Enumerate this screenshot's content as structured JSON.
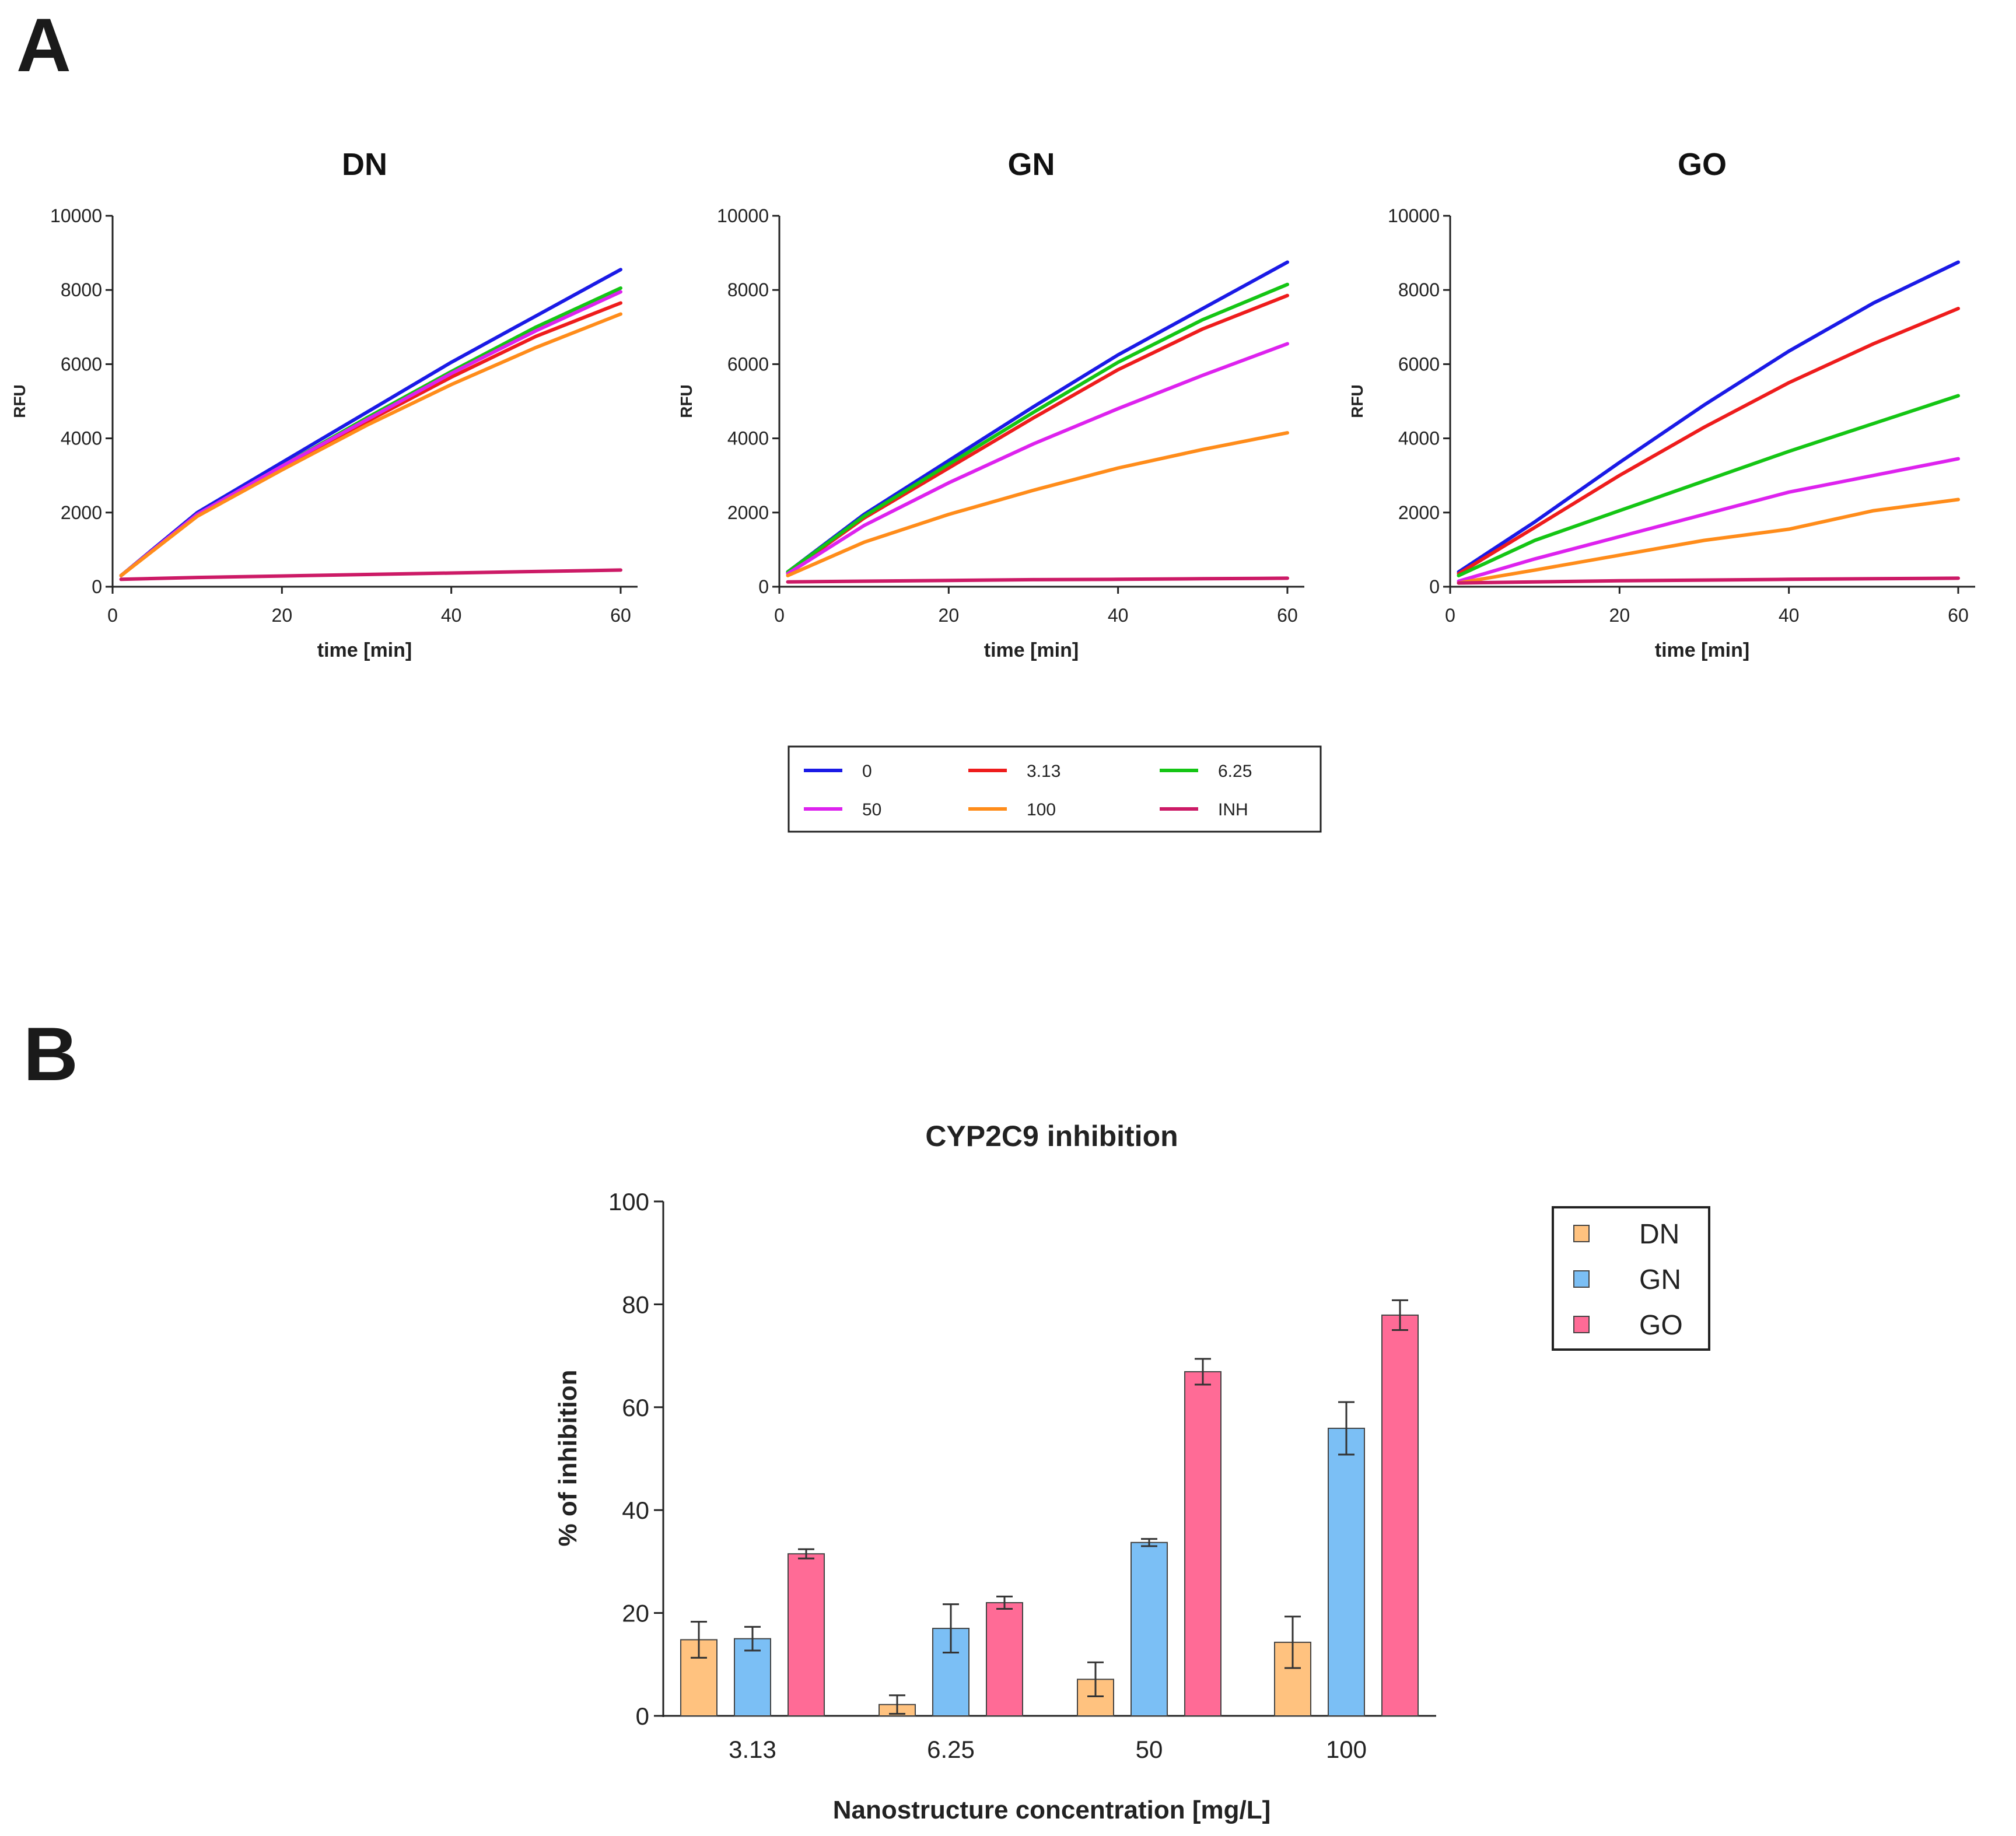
{
  "panels": {
    "a": {
      "letter": "A"
    },
    "b": {
      "letter": "B"
    }
  },
  "legend_a": {
    "entries": [
      {
        "label": "0",
        "color": "#1a1ae6"
      },
      {
        "label": "3.13",
        "color": "#ee1c1c"
      },
      {
        "label": "6.25",
        "color": "#14c514"
      },
      {
        "label": "50",
        "color": "#dd22ee"
      },
      {
        "label": "100",
        "color": "#ff8c1a"
      },
      {
        "label": "INH",
        "color": "#cc1a66"
      }
    ]
  },
  "chart_data": [
    {
      "type": "line",
      "title": "DN",
      "xlabel": "time [min]",
      "ylabel": "RFU",
      "xlim": [
        0,
        62
      ],
      "ylim": [
        0,
        10000
      ],
      "xticks": [
        "0",
        "20",
        "40",
        "60"
      ],
      "yticks": [
        "0",
        "2000",
        "4000",
        "6000",
        "8000",
        "10000"
      ],
      "x": [
        1,
        10,
        20,
        30,
        40,
        50,
        60
      ],
      "series": [
        {
          "name": "0",
          "values": [
            300,
            2000,
            3350,
            4700,
            6050,
            7300,
            8550
          ]
        },
        {
          "name": "3.13",
          "values": [
            300,
            1950,
            3200,
            4450,
            5650,
            6750,
            7650
          ]
        },
        {
          "name": "6.25",
          "values": [
            300,
            1950,
            3250,
            4550,
            5800,
            7000,
            8050
          ]
        },
        {
          "name": "50",
          "values": [
            300,
            1950,
            3250,
            4500,
            5750,
            6900,
            7950
          ]
        },
        {
          "name": "100",
          "values": [
            300,
            1900,
            3150,
            4350,
            5450,
            6450,
            7350
          ]
        },
        {
          "name": "INH",
          "values": [
            200,
            250,
            290,
            330,
            370,
            410,
            450
          ]
        }
      ]
    },
    {
      "type": "line",
      "title": "GN",
      "xlabel": "time [min]",
      "ylabel": "RFU",
      "xlim": [
        0,
        62
      ],
      "ylim": [
        0,
        10000
      ],
      "xticks": [
        "0",
        "20",
        "40",
        "60"
      ],
      "yticks": [
        "0",
        "2000",
        "4000",
        "6000",
        "8000",
        "10000"
      ],
      "x": [
        1,
        10,
        20,
        30,
        40,
        50,
        60
      ],
      "series": [
        {
          "name": "0",
          "values": [
            400,
            1950,
            3400,
            4850,
            6250,
            7500,
            8750
          ]
        },
        {
          "name": "3.13",
          "values": [
            380,
            1850,
            3200,
            4550,
            5850,
            6950,
            7850
          ]
        },
        {
          "name": "6.25",
          "values": [
            400,
            1900,
            3300,
            4700,
            6050,
            7200,
            8150
          ]
        },
        {
          "name": "50",
          "values": [
            350,
            1650,
            2800,
            3850,
            4800,
            5700,
            6550
          ]
        },
        {
          "name": "100",
          "values": [
            300,
            1200,
            1950,
            2600,
            3200,
            3700,
            4150
          ]
        },
        {
          "name": "INH",
          "values": [
            130,
            150,
            170,
            190,
            200,
            215,
            230
          ]
        }
      ]
    },
    {
      "type": "line",
      "title": "GO",
      "xlabel": "time [min]",
      "ylabel": "RFU",
      "xlim": [
        0,
        62
      ],
      "ylim": [
        0,
        10000
      ],
      "xticks": [
        "0",
        "20",
        "40",
        "60"
      ],
      "yticks": [
        "0",
        "2000",
        "4000",
        "6000",
        "8000",
        "10000"
      ],
      "x": [
        1,
        10,
        20,
        30,
        40,
        50,
        60
      ],
      "series": [
        {
          "name": "0",
          "values": [
            400,
            1750,
            3350,
            4900,
            6350,
            7650,
            8750
          ]
        },
        {
          "name": "3.13",
          "values": [
            350,
            1600,
            3000,
            4300,
            5500,
            6550,
            7500
          ]
        },
        {
          "name": "6.25",
          "values": [
            300,
            1250,
            2050,
            2850,
            3650,
            4400,
            5150
          ]
        },
        {
          "name": "50",
          "values": [
            150,
            750,
            1350,
            1950,
            2550,
            3000,
            3450
          ]
        },
        {
          "name": "100",
          "values": [
            100,
            450,
            850,
            1250,
            1550,
            2050,
            2350
          ]
        },
        {
          "name": "INH",
          "values": [
            100,
            130,
            160,
            180,
            200,
            215,
            230
          ]
        }
      ]
    },
    {
      "type": "bar",
      "title": "CYP2C9 inhibition",
      "xlabel": "Nanostructure concentration [mg/L]",
      "ylabel": "% of inhibition",
      "ylim": [
        0,
        100
      ],
      "yticks": [
        "0",
        "20",
        "40",
        "60",
        "80",
        "100"
      ],
      "categories": [
        "3.13",
        "6.25",
        "50",
        "100"
      ],
      "legend_position": "top-right",
      "series": [
        {
          "name": "DN",
          "color": "#ffc27f",
          "values": [
            14.8,
            2.2,
            7.1,
            14.3
          ],
          "errors": [
            3.5,
            1.8,
            3.3,
            5.0
          ]
        },
        {
          "name": "GN",
          "color": "#7bbff5",
          "values": [
            15.0,
            17.0,
            33.7,
            55.9
          ],
          "errors": [
            2.3,
            4.7,
            0.7,
            5.1
          ]
        },
        {
          "name": "GO",
          "color": "#ff6b96",
          "values": [
            31.5,
            22.0,
            66.9,
            77.9
          ],
          "errors": [
            0.9,
            1.2,
            2.5,
            2.9
          ]
        }
      ]
    }
  ]
}
